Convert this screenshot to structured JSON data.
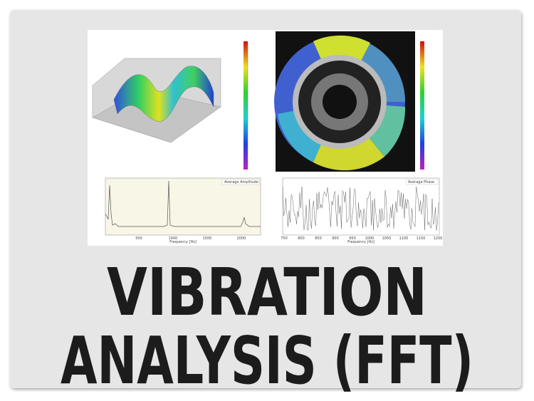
{
  "title": {
    "lines": [
      "VIBRATION",
      "ANALYSIS (FFT)"
    ]
  },
  "panels": {
    "amplitude": {
      "legend": "Average Amplitude",
      "x_label": "Frequency [Hz]",
      "x_ticks": [
        "500",
        "1000",
        "1500",
        "2000"
      ]
    },
    "phase": {
      "legend": "Average Phase",
      "x_label": "Frequency [Hz]",
      "x_ticks": [
        "750",
        "800",
        "850",
        "900",
        "950",
        "1000",
        "1050",
        "1100",
        "1150",
        "1200"
      ]
    }
  }
}
